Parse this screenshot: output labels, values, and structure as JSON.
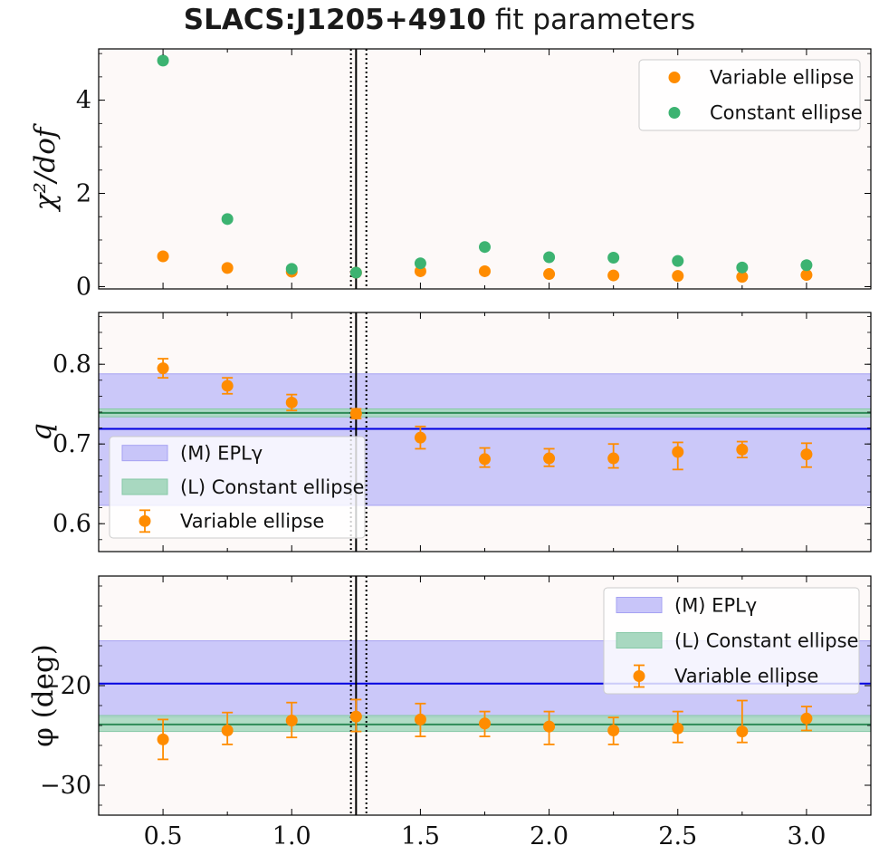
{
  "title": {
    "bold": "SLACS:J1205+4910",
    "rest": " fit parameters"
  },
  "colors": {
    "background": "#fdf9f8",
    "variable": "#ff8c00",
    "constant": "#3cb371",
    "model_band": "#c8c5f9",
    "model_line": "#0000e0",
    "const_band": "#a8d8c0",
    "const_line": "#2e8b57"
  },
  "chart_data": [
    {
      "type": "scatter",
      "title": "SLACS:J1205+4910 fit parameters",
      "ylabel": "χ²/dof",
      "xlim": [
        0.25,
        3.25
      ],
      "ylim": [
        -0.05,
        5.1
      ],
      "yticks": [
        0,
        2,
        4
      ],
      "ytick_labels": [
        "0",
        "2",
        "4"
      ],
      "legend": "top-right",
      "legend_entries": [
        "Variable ellipse",
        "Constant ellipse"
      ],
      "vlines": {
        "solid": 1.25,
        "dotted": [
          1.23,
          1.29
        ]
      },
      "series": [
        {
          "name": "Variable ellipse",
          "x": [
            0.5,
            0.75,
            1.0,
            1.25,
            1.5,
            1.75,
            2.0,
            2.25,
            2.5,
            2.75,
            3.0
          ],
          "y": [
            0.65,
            0.4,
            0.32,
            0.3,
            0.33,
            0.33,
            0.27,
            0.24,
            0.23,
            0.21,
            0.25
          ]
        },
        {
          "name": "Constant ellipse",
          "x": [
            0.5,
            0.75,
            1.0,
            1.25,
            1.5,
            1.75,
            2.0,
            2.25,
            2.5,
            2.75,
            3.0
          ],
          "y": [
            4.85,
            1.45,
            0.38,
            0.3,
            0.5,
            0.85,
            0.63,
            0.62,
            0.55,
            0.41,
            0.46
          ]
        }
      ]
    },
    {
      "type": "scatter",
      "ylabel": "q",
      "xlim": [
        0.25,
        3.25
      ],
      "ylim": [
        0.565,
        0.865
      ],
      "yticks": [
        0.6,
        0.7,
        0.8
      ],
      "ytick_labels": [
        "0.6",
        "0.7",
        "0.8"
      ],
      "legend": "lower-left",
      "legend_entries": [
        "(M) EPLγ",
        "(L) Constant ellipse",
        "Variable ellipse"
      ],
      "vlines": {
        "solid": 1.25,
        "dotted": [
          1.23,
          1.29
        ]
      },
      "bands": [
        {
          "name": "(M) EPLγ",
          "center": 0.719,
          "low": 0.623,
          "high": 0.788
        },
        {
          "name": "(L) Constant ellipse",
          "center": 0.739,
          "low": 0.734,
          "high": 0.744
        }
      ],
      "series": [
        {
          "name": "Variable ellipse",
          "x": [
            0.5,
            0.75,
            1.0,
            1.25,
            1.5,
            1.75,
            2.0,
            2.25,
            2.5,
            2.75,
            3.0
          ],
          "y": [
            0.795,
            0.773,
            0.752,
            0.738,
            0.708,
            0.681,
            0.682,
            0.682,
            0.69,
            0.693,
            0.687
          ],
          "yerr_low": [
            0.012,
            0.01,
            0.01,
            0.006,
            0.014,
            0.01,
            0.01,
            0.012,
            0.022,
            0.01,
            0.016
          ],
          "yerr_high": [
            0.012,
            0.01,
            0.01,
            0.006,
            0.014,
            0.014,
            0.012,
            0.018,
            0.012,
            0.01,
            0.014
          ]
        }
      ]
    },
    {
      "type": "scatter",
      "ylabel": "φ (deg)",
      "xlabel": "",
      "xlim": [
        0.25,
        3.25
      ],
      "xticks": [
        0.5,
        1.0,
        1.5,
        2.0,
        2.5,
        3.0
      ],
      "xtick_labels": [
        "0.5",
        "1.0",
        "1.5",
        "2.0",
        "2.5",
        "3.0"
      ],
      "ylim": [
        -33,
        -9
      ],
      "yticks": [
        -30,
        -20
      ],
      "ytick_labels": [
        "−30",
        "−20"
      ],
      "legend": "upper-right",
      "legend_entries": [
        "(M) EPLγ",
        "(L) Constant ellipse",
        "Variable ellipse"
      ],
      "vlines": {
        "solid": 1.25,
        "dotted": [
          1.23,
          1.29
        ]
      },
      "bands": [
        {
          "name": "(M) EPLγ",
          "center": -19.8,
          "low": -23.2,
          "high": -15.5
        },
        {
          "name": "(L) Constant ellipse",
          "center": -23.9,
          "low": -24.6,
          "high": -23.0
        }
      ],
      "series": [
        {
          "name": "Variable ellipse",
          "x": [
            0.5,
            0.75,
            1.0,
            1.25,
            1.5,
            1.75,
            2.0,
            2.25,
            2.5,
            2.75,
            3.0
          ],
          "y": [
            -25.4,
            -24.5,
            -23.5,
            -23.1,
            -23.4,
            -23.8,
            -24.1,
            -24.5,
            -24.3,
            -24.6,
            -23.3
          ],
          "yerr_low": [
            2.0,
            1.4,
            1.7,
            1.5,
            1.7,
            1.3,
            1.8,
            1.4,
            1.4,
            1.1,
            1.2
          ],
          "yerr_high": [
            2.0,
            1.8,
            1.8,
            1.7,
            1.6,
            1.2,
            1.5,
            1.3,
            1.7,
            3.1,
            1.2
          ]
        }
      ]
    }
  ]
}
